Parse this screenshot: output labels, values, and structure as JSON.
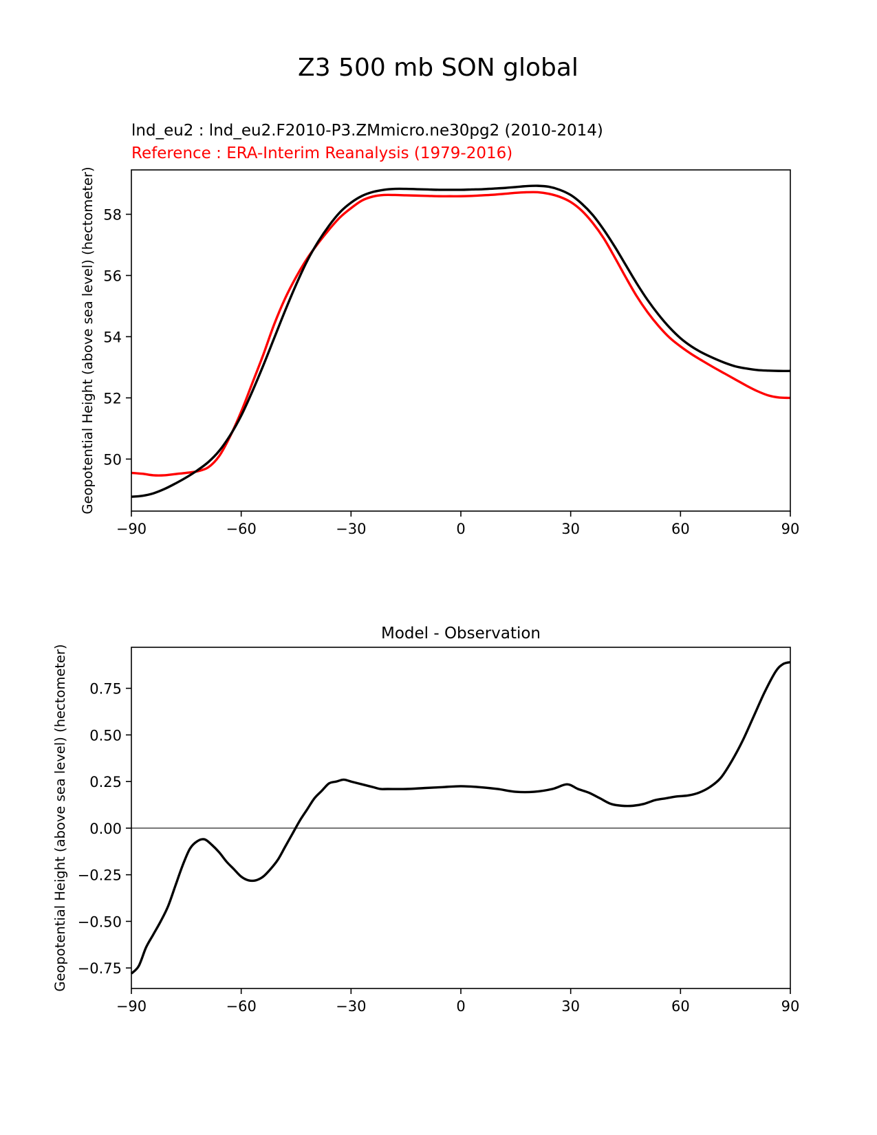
{
  "suptitle": "Z3 500 mb SON global",
  "colors": {
    "test": "#000000",
    "reference": "#ff0000",
    "zero_line": "#808080",
    "axes": "#000000"
  },
  "chart_data": [
    {
      "type": "line",
      "test_label": "lnd_eu2 : lnd_eu2.F2010-P3.ZMmicro.ne30pg2 (2010-2014)",
      "reference_label": "Reference : ERA-Interim Reanalysis (1979-2016)",
      "title": "",
      "xlabel": "",
      "ylabel": "Geopotential Height (above sea level) (hectometer)",
      "xlim": [
        -90,
        90
      ],
      "ylim": [
        48.3,
        59.45
      ],
      "xticks": [
        -90,
        -60,
        -30,
        0,
        30,
        60,
        90
      ],
      "xtick_labels": [
        "−90",
        "−60",
        "−30",
        "0",
        "30",
        "60",
        "90"
      ],
      "yticks": [
        50,
        52,
        54,
        56,
        58
      ],
      "ytick_labels": [
        "50",
        "52",
        "54",
        "56",
        "58"
      ],
      "series": [
        {
          "name": "lnd_eu2",
          "color": "#000000",
          "x": [
            -90,
            -87,
            -84,
            -81,
            -78,
            -75,
            -72,
            -69,
            -66,
            -63,
            -60,
            -57,
            -54,
            -51,
            -48,
            -45,
            -42,
            -39,
            -36,
            -33,
            -30,
            -27,
            -24,
            -21,
            -18,
            -15,
            -12,
            -9,
            -6,
            -3,
            0,
            3,
            6,
            9,
            12,
            15,
            18,
            21,
            24,
            27,
            30,
            33,
            36,
            39,
            42,
            45,
            48,
            51,
            54,
            57,
            60,
            63,
            66,
            69,
            72,
            75,
            78,
            81,
            84,
            87,
            90
          ],
          "values": [
            48.77,
            48.8,
            48.88,
            49.02,
            49.2,
            49.4,
            49.63,
            49.9,
            50.27,
            50.78,
            51.42,
            52.2,
            53.05,
            53.95,
            54.85,
            55.7,
            56.47,
            57.1,
            57.63,
            58.07,
            58.38,
            58.6,
            58.73,
            58.8,
            58.83,
            58.83,
            58.82,
            58.81,
            58.8,
            58.8,
            58.8,
            58.81,
            58.82,
            58.84,
            58.86,
            58.89,
            58.92,
            58.93,
            58.9,
            58.8,
            58.63,
            58.35,
            57.98,
            57.5,
            56.95,
            56.35,
            55.75,
            55.2,
            54.72,
            54.3,
            53.95,
            53.68,
            53.47,
            53.3,
            53.15,
            53.03,
            52.96,
            52.91,
            52.89,
            52.88,
            52.88
          ]
        },
        {
          "name": "ERA-Interim",
          "color": "#ff0000",
          "x": [
            -90,
            -87,
            -84,
            -81,
            -78,
            -75,
            -72,
            -69,
            -66,
            -63,
            -60,
            -57,
            -54,
            -51,
            -48,
            -45,
            -42,
            -39,
            -36,
            -33,
            -30,
            -27,
            -24,
            -21,
            -18,
            -15,
            -12,
            -9,
            -6,
            -3,
            0,
            3,
            6,
            9,
            12,
            15,
            18,
            21,
            24,
            27,
            30,
            33,
            36,
            39,
            42,
            45,
            48,
            51,
            54,
            57,
            60,
            63,
            66,
            69,
            72,
            75,
            78,
            81,
            84,
            87,
            90
          ],
          "values": [
            49.55,
            49.52,
            49.47,
            49.47,
            49.51,
            49.55,
            49.6,
            49.73,
            50.1,
            50.75,
            51.55,
            52.47,
            53.4,
            54.4,
            55.25,
            55.95,
            56.55,
            57.05,
            57.5,
            57.9,
            58.2,
            58.45,
            58.58,
            58.63,
            58.63,
            58.62,
            58.61,
            58.6,
            58.59,
            58.59,
            58.59,
            58.6,
            58.62,
            58.64,
            58.67,
            58.7,
            58.72,
            58.72,
            58.67,
            58.57,
            58.4,
            58.12,
            57.72,
            57.22,
            56.6,
            55.95,
            55.33,
            54.8,
            54.35,
            53.97,
            53.68,
            53.43,
            53.21,
            53.0,
            52.8,
            52.6,
            52.4,
            52.22,
            52.08,
            52.01,
            52.0
          ]
        }
      ]
    },
    {
      "type": "line",
      "title": "Model - Observation",
      "xlabel": "",
      "ylabel": "Geopotential Height (above sea level) (hectometer)",
      "xlim": [
        -90,
        90
      ],
      "ylim": [
        -0.86,
        0.97
      ],
      "xticks": [
        -90,
        -60,
        -30,
        0,
        30,
        60,
        90
      ],
      "xtick_labels": [
        "−90",
        "−60",
        "−30",
        "0",
        "30",
        "60",
        "90"
      ],
      "yticks": [
        -0.75,
        -0.5,
        -0.25,
        0.0,
        0.25,
        0.5,
        0.75
      ],
      "ytick_labels": [
        "−0.75",
        "−0.50",
        "−0.25",
        "0.00",
        "0.25",
        "0.50",
        "0.75"
      ],
      "zero_line": 0,
      "series": [
        {
          "name": "Model - Observation",
          "color": "#000000",
          "x": [
            -90,
            -88,
            -86,
            -84,
            -82,
            -80,
            -78,
            -76,
            -74,
            -72,
            -70,
            -68,
            -66,
            -64,
            -62,
            -60,
            -58,
            -56,
            -54,
            -52,
            -50,
            -48,
            -46,
            -44,
            -42,
            -40,
            -38,
            -36,
            -34,
            -32,
            -30,
            -28,
            -26,
            -24,
            -22,
            -20,
            -15,
            -10,
            -5,
            0,
            5,
            10,
            15,
            20,
            25,
            29,
            32,
            35,
            38,
            41,
            44,
            47,
            50,
            53,
            56,
            59,
            62,
            65,
            68,
            71,
            74,
            77,
            80,
            83,
            86,
            88,
            90
          ],
          "values": [
            -0.78,
            -0.74,
            -0.64,
            -0.57,
            -0.5,
            -0.42,
            -0.31,
            -0.2,
            -0.11,
            -0.07,
            -0.06,
            -0.09,
            -0.13,
            -0.18,
            -0.22,
            -0.26,
            -0.28,
            -0.28,
            -0.26,
            -0.22,
            -0.17,
            -0.1,
            -0.03,
            0.04,
            0.1,
            0.16,
            0.2,
            0.24,
            0.25,
            0.26,
            0.25,
            0.24,
            0.23,
            0.22,
            0.21,
            0.21,
            0.21,
            0.215,
            0.22,
            0.225,
            0.22,
            0.21,
            0.195,
            0.195,
            0.21,
            0.235,
            0.21,
            0.19,
            0.16,
            0.13,
            0.12,
            0.12,
            0.13,
            0.15,
            0.16,
            0.17,
            0.175,
            0.19,
            0.22,
            0.27,
            0.36,
            0.47,
            0.6,
            0.73,
            0.84,
            0.88,
            0.89
          ]
        }
      ]
    }
  ]
}
